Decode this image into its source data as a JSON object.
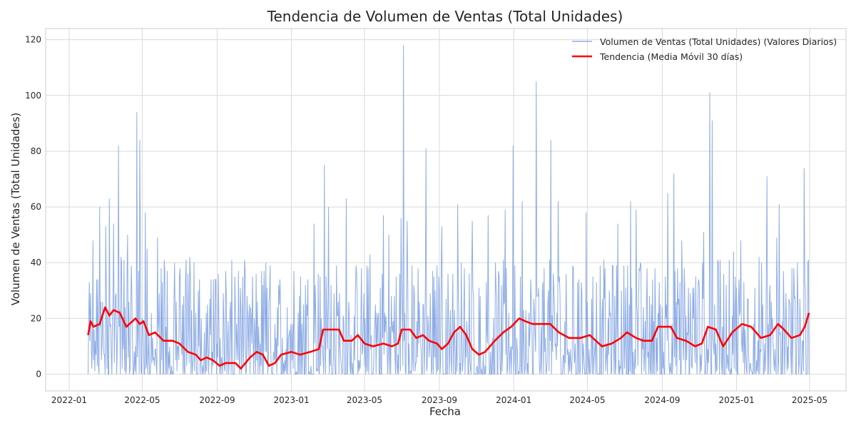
{
  "chart_data": {
    "type": "line",
    "title": "Tendencia de Volumen de Ventas (Total Unidades)",
    "xlabel": "Fecha",
    "ylabel": "Volumen de Ventas (Total Unidades)",
    "x_range": [
      "2022-02-01",
      "2025-04-30"
    ],
    "ylim": [
      -6,
      124
    ],
    "x_ticks": [
      "2022-01-01",
      "2022-05-01",
      "2022-09-01",
      "2023-01-01",
      "2023-05-01",
      "2023-09-01",
      "2024-01-01",
      "2024-05-01",
      "2024-09-01",
      "2025-01-01",
      "2025-05-01"
    ],
    "x_tick_labels": [
      "2022-01",
      "2022-05",
      "2022-09",
      "2023-01",
      "2023-05",
      "2023-09",
      "2024-01",
      "2024-05",
      "2024-09",
      "2025-01",
      "2025-05"
    ],
    "y_ticks": [
      0,
      20,
      40,
      60,
      80,
      100,
      120
    ],
    "grid": true,
    "legend_position": "top-right",
    "series": [
      {
        "name": "Volumen de Ventas (Total Unidades) (Valores Diarios)",
        "color": "#7b9fe0",
        "approximate": true,
        "baseline_mean": 13,
        "peaks": [
          {
            "date": "2022-02-05",
            "value": 29
          },
          {
            "date": "2022-02-09",
            "value": 48
          },
          {
            "date": "2022-02-15",
            "value": 34
          },
          {
            "date": "2022-02-20",
            "value": 60
          },
          {
            "date": "2022-03-02",
            "value": 53
          },
          {
            "date": "2022-03-08",
            "value": 63
          },
          {
            "date": "2022-03-15",
            "value": 54
          },
          {
            "date": "2022-03-23",
            "value": 82
          },
          {
            "date": "2022-03-27",
            "value": 42
          },
          {
            "date": "2022-04-07",
            "value": 50
          },
          {
            "date": "2022-04-22",
            "value": 94
          },
          {
            "date": "2022-04-27",
            "value": 84
          },
          {
            "date": "2022-05-06",
            "value": 58
          },
          {
            "date": "2022-05-09",
            "value": 45
          },
          {
            "date": "2022-05-26",
            "value": 49
          },
          {
            "date": "2022-06-06",
            "value": 41
          },
          {
            "date": "2022-06-11",
            "value": 37
          },
          {
            "date": "2022-07-15",
            "value": 36
          },
          {
            "date": "2022-07-25",
            "value": 40
          },
          {
            "date": "2022-09-15",
            "value": 37
          },
          {
            "date": "2022-11-20",
            "value": 40
          },
          {
            "date": "2023-02-07",
            "value": 54
          },
          {
            "date": "2023-02-24",
            "value": 75
          },
          {
            "date": "2023-03-03",
            "value": 60
          },
          {
            "date": "2023-04-01",
            "value": 63
          },
          {
            "date": "2023-05-10",
            "value": 43
          },
          {
            "date": "2023-06-01",
            "value": 57
          },
          {
            "date": "2023-06-10",
            "value": 50
          },
          {
            "date": "2023-06-30",
            "value": 56
          },
          {
            "date": "2023-07-04",
            "value": 118
          },
          {
            "date": "2023-07-10",
            "value": 55
          },
          {
            "date": "2023-08-10",
            "value": 81
          },
          {
            "date": "2023-09-05",
            "value": 53
          },
          {
            "date": "2023-10-01",
            "value": 61
          },
          {
            "date": "2023-10-25",
            "value": 55
          },
          {
            "date": "2023-11-20",
            "value": 57
          },
          {
            "date": "2023-12-18",
            "value": 59
          },
          {
            "date": "2023-12-31",
            "value": 82
          },
          {
            "date": "2024-01-15",
            "value": 62
          },
          {
            "date": "2024-02-07",
            "value": 105
          },
          {
            "date": "2024-03-02",
            "value": 84
          },
          {
            "date": "2024-03-14",
            "value": 62
          },
          {
            "date": "2024-04-29",
            "value": 58
          },
          {
            "date": "2024-06-20",
            "value": 54
          },
          {
            "date": "2024-07-11",
            "value": 62
          },
          {
            "date": "2024-07-20",
            "value": 59
          },
          {
            "date": "2024-09-10",
            "value": 65
          },
          {
            "date": "2024-09-20",
            "value": 72
          },
          {
            "date": "2024-10-03",
            "value": 48
          },
          {
            "date": "2024-11-08",
            "value": 51
          },
          {
            "date": "2024-11-18",
            "value": 101
          },
          {
            "date": "2024-11-22",
            "value": 91
          },
          {
            "date": "2024-12-27",
            "value": 44
          },
          {
            "date": "2025-01-08",
            "value": 48
          },
          {
            "date": "2025-02-07",
            "value": 42
          },
          {
            "date": "2025-02-20",
            "value": 71
          },
          {
            "date": "2025-03-08",
            "value": 49
          },
          {
            "date": "2025-03-12",
            "value": 61
          },
          {
            "date": "2025-04-22",
            "value": 74
          },
          {
            "date": "2025-04-28",
            "value": 40
          }
        ]
      },
      {
        "name": "Tendencia (Media Móvil 30 días)",
        "color": "#ff0000",
        "points": [
          {
            "date": "2022-02-01",
            "value": 14
          },
          {
            "date": "2022-02-05",
            "value": 19
          },
          {
            "date": "2022-02-10",
            "value": 17
          },
          {
            "date": "2022-02-20",
            "value": 18
          },
          {
            "date": "2022-03-01",
            "value": 24
          },
          {
            "date": "2022-03-08",
            "value": 21
          },
          {
            "date": "2022-03-15",
            "value": 23
          },
          {
            "date": "2022-03-25",
            "value": 22
          },
          {
            "date": "2022-04-05",
            "value": 17
          },
          {
            "date": "2022-04-10",
            "value": 18
          },
          {
            "date": "2022-04-20",
            "value": 20
          },
          {
            "date": "2022-04-27",
            "value": 18
          },
          {
            "date": "2022-05-03",
            "value": 19
          },
          {
            "date": "2022-05-12",
            "value": 14
          },
          {
            "date": "2022-05-22",
            "value": 15
          },
          {
            "date": "2022-06-05",
            "value": 12
          },
          {
            "date": "2022-06-20",
            "value": 12
          },
          {
            "date": "2022-07-01",
            "value": 11
          },
          {
            "date": "2022-07-15",
            "value": 8
          },
          {
            "date": "2022-07-28",
            "value": 7
          },
          {
            "date": "2022-08-05",
            "value": 5
          },
          {
            "date": "2022-08-15",
            "value": 6
          },
          {
            "date": "2022-08-25",
            "value": 5
          },
          {
            "date": "2022-09-05",
            "value": 3
          },
          {
            "date": "2022-09-15",
            "value": 4
          },
          {
            "date": "2022-10-01",
            "value": 4
          },
          {
            "date": "2022-10-10",
            "value": 2
          },
          {
            "date": "2022-10-25",
            "value": 6
          },
          {
            "date": "2022-11-05",
            "value": 8
          },
          {
            "date": "2022-11-15",
            "value": 7
          },
          {
            "date": "2022-11-25",
            "value": 3
          },
          {
            "date": "2022-12-05",
            "value": 4
          },
          {
            "date": "2022-12-15",
            "value": 7
          },
          {
            "date": "2023-01-01",
            "value": 8
          },
          {
            "date": "2023-01-15",
            "value": 7
          },
          {
            "date": "2023-02-01",
            "value": 8
          },
          {
            "date": "2023-02-15",
            "value": 9
          },
          {
            "date": "2023-02-22",
            "value": 16
          },
          {
            "date": "2023-03-05",
            "value": 16
          },
          {
            "date": "2023-03-20",
            "value": 16
          },
          {
            "date": "2023-03-28",
            "value": 12
          },
          {
            "date": "2023-04-10",
            "value": 12
          },
          {
            "date": "2023-04-20",
            "value": 14
          },
          {
            "date": "2023-05-01",
            "value": 11
          },
          {
            "date": "2023-05-15",
            "value": 10
          },
          {
            "date": "2023-06-01",
            "value": 11
          },
          {
            "date": "2023-06-15",
            "value": 10
          },
          {
            "date": "2023-06-25",
            "value": 11
          },
          {
            "date": "2023-07-01",
            "value": 16
          },
          {
            "date": "2023-07-15",
            "value": 16
          },
          {
            "date": "2023-07-25",
            "value": 13
          },
          {
            "date": "2023-08-05",
            "value": 14
          },
          {
            "date": "2023-08-15",
            "value": 12
          },
          {
            "date": "2023-08-28",
            "value": 11
          },
          {
            "date": "2023-09-05",
            "value": 9
          },
          {
            "date": "2023-09-15",
            "value": 11
          },
          {
            "date": "2023-09-25",
            "value": 15
          },
          {
            "date": "2023-10-05",
            "value": 17
          },
          {
            "date": "2023-10-15",
            "value": 14
          },
          {
            "date": "2023-10-25",
            "value": 9
          },
          {
            "date": "2023-11-05",
            "value": 7
          },
          {
            "date": "2023-11-15",
            "value": 8
          },
          {
            "date": "2023-12-01",
            "value": 12
          },
          {
            "date": "2023-12-15",
            "value": 15
          },
          {
            "date": "2023-12-28",
            "value": 17
          },
          {
            "date": "2024-01-10",
            "value": 20
          },
          {
            "date": "2024-01-20",
            "value": 19
          },
          {
            "date": "2024-02-01",
            "value": 18
          },
          {
            "date": "2024-02-15",
            "value": 18
          },
          {
            "date": "2024-03-01",
            "value": 18
          },
          {
            "date": "2024-03-15",
            "value": 15
          },
          {
            "date": "2024-04-01",
            "value": 13
          },
          {
            "date": "2024-04-20",
            "value": 13
          },
          {
            "date": "2024-05-05",
            "value": 14
          },
          {
            "date": "2024-05-15",
            "value": 12
          },
          {
            "date": "2024-05-25",
            "value": 10
          },
          {
            "date": "2024-06-10",
            "value": 11
          },
          {
            "date": "2024-06-25",
            "value": 13
          },
          {
            "date": "2024-07-05",
            "value": 15
          },
          {
            "date": "2024-07-20",
            "value": 13
          },
          {
            "date": "2024-08-01",
            "value": 12
          },
          {
            "date": "2024-08-15",
            "value": 12
          },
          {
            "date": "2024-08-25",
            "value": 17
          },
          {
            "date": "2024-09-05",
            "value": 17
          },
          {
            "date": "2024-09-15",
            "value": 17
          },
          {
            "date": "2024-09-25",
            "value": 13
          },
          {
            "date": "2024-10-10",
            "value": 12
          },
          {
            "date": "2024-10-25",
            "value": 10
          },
          {
            "date": "2024-11-05",
            "value": 11
          },
          {
            "date": "2024-11-15",
            "value": 17
          },
          {
            "date": "2024-11-28",
            "value": 16
          },
          {
            "date": "2024-12-10",
            "value": 10
          },
          {
            "date": "2024-12-25",
            "value": 15
          },
          {
            "date": "2025-01-10",
            "value": 18
          },
          {
            "date": "2025-01-25",
            "value": 17
          },
          {
            "date": "2025-02-10",
            "value": 13
          },
          {
            "date": "2025-02-25",
            "value": 14
          },
          {
            "date": "2025-03-10",
            "value": 18
          },
          {
            "date": "2025-03-20",
            "value": 16
          },
          {
            "date": "2025-04-01",
            "value": 13
          },
          {
            "date": "2025-04-15",
            "value": 14
          },
          {
            "date": "2025-04-23",
            "value": 17
          },
          {
            "date": "2025-04-30",
            "value": 22
          }
        ]
      }
    ]
  }
}
